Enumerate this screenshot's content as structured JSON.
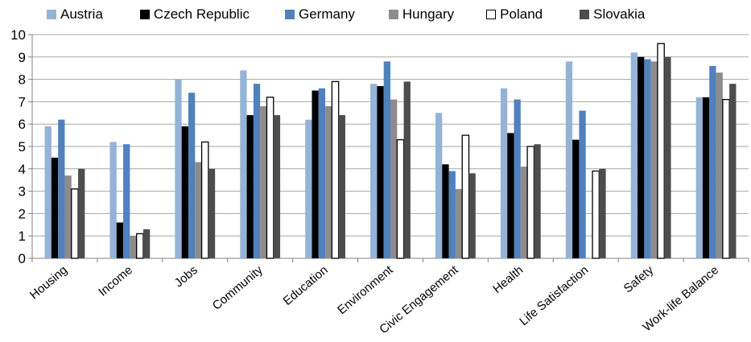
{
  "chart_data": {
    "type": "bar",
    "categories": [
      "Housing",
      "Income",
      "Jobs",
      "Community",
      "Education",
      "Environment",
      "Civic Engagement",
      "Health",
      "Life Satisfaction",
      "Safety",
      "Work-life Balance"
    ],
    "series": [
      {
        "name": "Austria",
        "color": "#95B3D7",
        "values": [
          5.9,
          5.2,
          8.0,
          8.4,
          6.2,
          7.8,
          6.5,
          7.6,
          8.8,
          9.2,
          7.2
        ]
      },
      {
        "name": "Czech Republic",
        "color": "#000000",
        "values": [
          4.5,
          1.6,
          5.9,
          6.4,
          7.5,
          7.7,
          4.2,
          5.6,
          5.3,
          9.0,
          7.2
        ]
      },
      {
        "name": "Germany",
        "color": "#4F81BD",
        "values": [
          6.2,
          5.1,
          7.4,
          7.8,
          7.6,
          8.8,
          3.9,
          7.1,
          6.6,
          8.9,
          8.6
        ]
      },
      {
        "name": "Hungary",
        "color": "#8C8C8C",
        "values": [
          3.7,
          1.0,
          4.3,
          6.8,
          6.8,
          7.1,
          3.1,
          4.1,
          0.0,
          8.8,
          8.3
        ]
      },
      {
        "name": "Poland",
        "color": "#FFFFFF",
        "values": [
          3.1,
          1.1,
          5.2,
          7.2,
          7.9,
          5.3,
          5.5,
          5.0,
          3.9,
          9.6,
          7.1
        ]
      },
      {
        "name": "Slovakia",
        "color": "#4D4D4D",
        "values": [
          4.0,
          1.3,
          4.0,
          6.4,
          6.4,
          7.9,
          3.8,
          5.1,
          4.0,
          9.0,
          7.8
        ]
      }
    ],
    "ylim": [
      0,
      10
    ],
    "yticks": [
      0,
      1,
      2,
      3,
      4,
      5,
      6,
      7,
      8,
      9,
      10
    ],
    "grid": true,
    "legend_position": "top"
  }
}
